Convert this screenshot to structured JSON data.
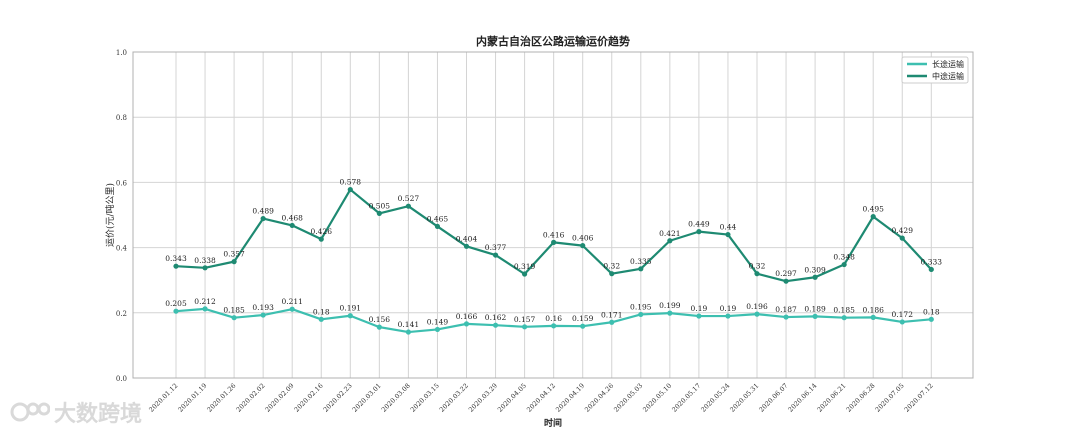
{
  "chart_data": {
    "type": "line",
    "title": "内蒙古自治区公路运输运价趋势",
    "xlabel": "时间",
    "ylabel": "运价(元/吨公里)",
    "ylim": [
      0,
      1.0
    ],
    "yticks": [
      "0.0",
      "0.2",
      "0.4",
      "0.6",
      "0.8",
      "1.0"
    ],
    "grid": true,
    "legend_position": "top-right",
    "categories": [
      "2020.01.12",
      "2020.01.19",
      "2020.01.26",
      "2020.02.02",
      "2020.02.09",
      "2020.02.16",
      "2020.02.23",
      "2020.03.01",
      "2020.03.08",
      "2020.03.15",
      "2020.03.22",
      "2020.03.29",
      "2020.04.05",
      "2020.04.12",
      "2020.04.19",
      "2020.04.26",
      "2020.05.03",
      "2020.05.10",
      "2020.05.17",
      "2020.05.24",
      "2020.05.31",
      "2020.06.07",
      "2020.06.14",
      "2020.06.21",
      "2020.06.28",
      "2020.07.05",
      "2020.07.12"
    ],
    "series": [
      {
        "name": "长途运输",
        "color": "#3dbfb0",
        "values": [
          0.205,
          0.212,
          0.185,
          0.193,
          0.211,
          0.18,
          0.191,
          0.156,
          0.141,
          0.149,
          0.166,
          0.162,
          0.157,
          0.16,
          0.159,
          0.171,
          0.195,
          0.199,
          0.19,
          0.19,
          0.196,
          0.187,
          0.189,
          0.185,
          0.186,
          0.172,
          0.18
        ]
      },
      {
        "name": "中途运输",
        "color": "#1e8a72",
        "values": [
          0.343,
          0.338,
          0.357,
          0.489,
          0.468,
          0.426,
          0.578,
          0.505,
          0.527,
          0.465,
          0.404,
          0.377,
          0.319,
          0.416,
          0.406,
          0.32,
          0.335,
          0.421,
          0.449,
          0.44,
          0.32,
          0.297,
          0.309,
          0.348,
          0.495,
          0.429,
          0.333
        ]
      }
    ]
  },
  "watermark": {
    "text": "大数跨境",
    "icon": "logo-icon"
  }
}
